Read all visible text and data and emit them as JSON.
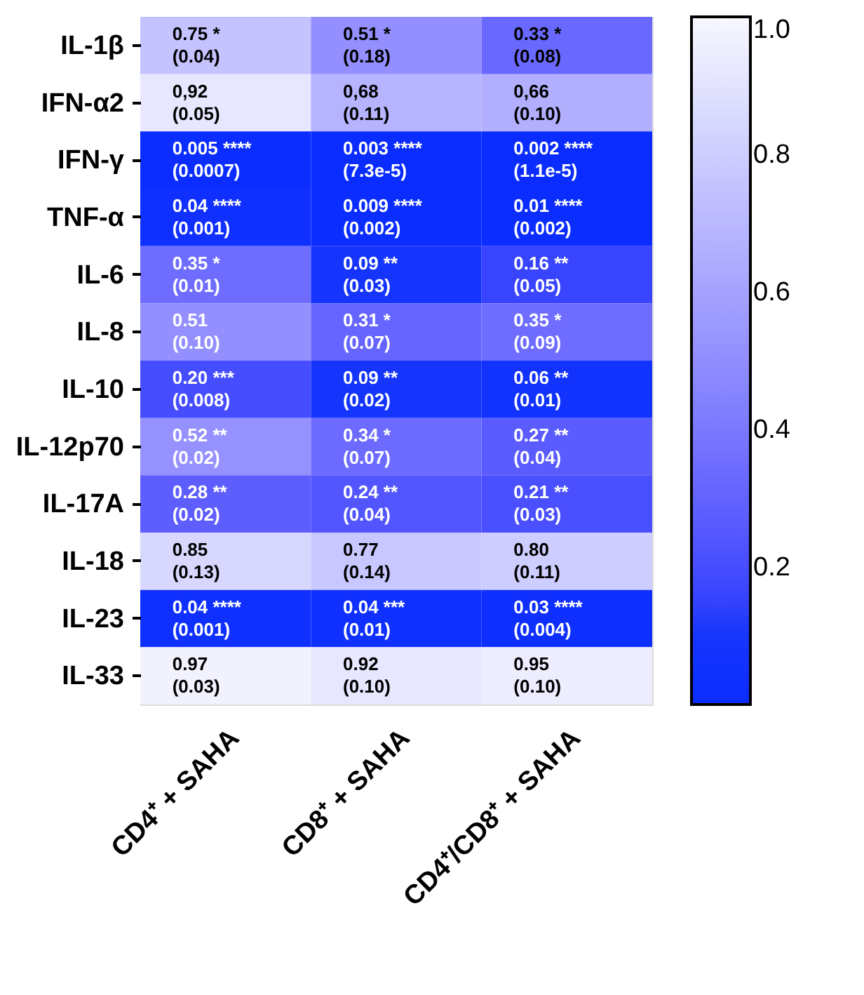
{
  "chart_data": {
    "type": "heatmap",
    "categories": [
      "CD4⁺ + SAHA",
      "CD8⁺ + SAHA",
      "CD4⁺/CD8⁺ + SAHA"
    ],
    "y_categories": [
      "IL-1β",
      "IFN-α2",
      "IFN-γ",
      "TNF-α",
      "IL-6",
      "IL-8",
      "IL-10",
      "IL-12p70",
      "IL-17A",
      "IL-18",
      "IL-23",
      "IL-33"
    ],
    "cells": [
      [
        0.75,
        0.51,
        0.33
      ],
      [
        0.92,
        0.68,
        0.66
      ],
      [
        0.005,
        0.003,
        0.002
      ],
      [
        0.04,
        0.009,
        0.01
      ],
      [
        0.35,
        0.09,
        0.16
      ],
      [
        0.51,
        0.31,
        0.35
      ],
      [
        0.2,
        0.09,
        0.06
      ],
      [
        0.52,
        0.34,
        0.27
      ],
      [
        0.28,
        0.24,
        0.21
      ],
      [
        0.85,
        0.77,
        0.8
      ],
      [
        0.04,
        0.04,
        0.03
      ],
      [
        0.97,
        0.92,
        0.95
      ]
    ],
    "cell_labels": [
      [
        "0.75 *\n(0.04)",
        "0.51 *\n(0.18)",
        "0.33 *\n(0.08)"
      ],
      [
        "0,92\n(0.05)",
        "0,68\n(0.11)",
        "0,66\n(0.10)"
      ],
      [
        "0.005 ****\n(0.0007)",
        "0.003 ****\n(7.3e-5)",
        "0.002 ****\n(1.1e-5)"
      ],
      [
        "0.04 ****\n(0.001)",
        "0.009 ****\n(0.002)",
        "0.01 ****\n(0.002)"
      ],
      [
        "0.35 *\n(0.01)",
        "0.09 **\n(0.03)",
        "0.16 **\n(0.05)"
      ],
      [
        "0.51\n(0.10)",
        "0.31 *\n(0.07)",
        "0.35 *\n(0.09)"
      ],
      [
        "0.20 ***\n(0.008)",
        "0.09 **\n(0.02)",
        "0.06 **\n(0.01)"
      ],
      [
        "0.52 **\n(0.02)",
        "0.34 *\n(0.07)",
        "0.27 **\n(0.04)"
      ],
      [
        "0.28 **\n(0.02)",
        "0.24 **\n(0.04)",
        "0.21 **\n(0.03)"
      ],
      [
        "0.85\n(0.13)",
        "0.77\n(0.14)",
        "0.80\n(0.11)"
      ],
      [
        "0.04 ****\n(0.001)",
        "0.04 ***\n(0.01)",
        "0.03 ****\n(0.004)"
      ],
      [
        "0.97\n(0.03)",
        "0.92\n(0.10)",
        "0.95\n(0.10)"
      ]
    ],
    "clim": [
      0,
      1.0
    ],
    "cticks": [
      0.2,
      0.4,
      0.6,
      0.8,
      {
        "value": 1.0,
        "label": "1.0"
      }
    ]
  }
}
